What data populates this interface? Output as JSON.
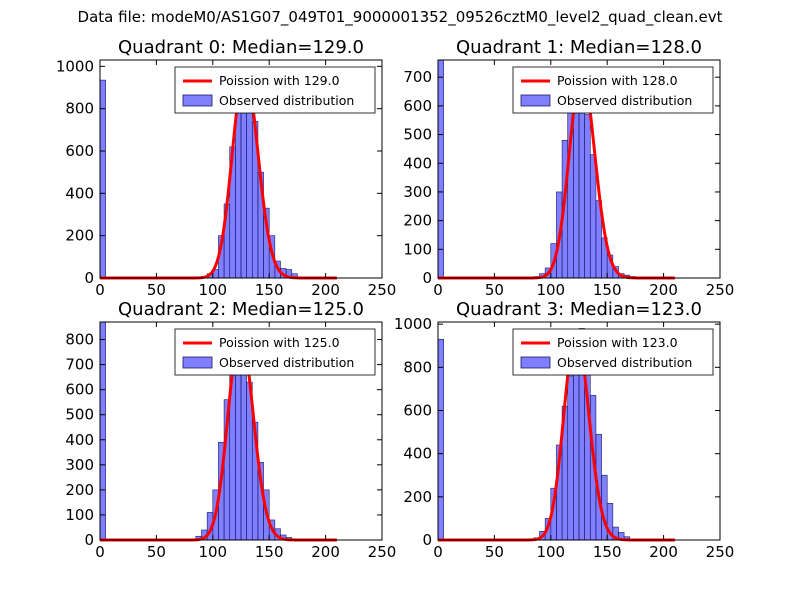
{
  "figure": {
    "suptitle": "Data file: modeM0/AS1G07_049T01_9000001352_09526cztM0_level2_quad_clean.evt"
  },
  "chart_data": [
    {
      "type": "bar",
      "title": "Quadrant 0: Median=129.0",
      "xlim": [
        0,
        250
      ],
      "ylim": [
        0,
        1030
      ],
      "xticks": [
        "0",
        "50",
        "100",
        "150",
        "200",
        "250"
      ],
      "yticks": [
        "0",
        "200",
        "400",
        "600",
        "800",
        "1000"
      ],
      "ytick_values": [
        0,
        200,
        400,
        600,
        800,
        1000
      ],
      "legend": {
        "line": "Poission with 129.0",
        "bars": "Observed distribution",
        "position": "upper-right"
      },
      "poisson_mean": 129.0,
      "poisson_amplitude": 975,
      "series": [
        {
          "name": "Observed distribution",
          "bin_width": 5,
          "bin_starts": [
            0,
            80,
            85,
            90,
            95,
            100,
            105,
            110,
            115,
            120,
            125,
            130,
            135,
            140,
            145,
            150,
            155,
            160,
            165,
            170,
            175
          ],
          "values": [
            935,
            2,
            5,
            8,
            20,
            40,
            200,
            350,
            620,
            840,
            960,
            900,
            740,
            500,
            330,
            200,
            80,
            45,
            40,
            20,
            5
          ]
        }
      ]
    },
    {
      "type": "bar",
      "title": "Quadrant 1: Median=128.0",
      "xlim": [
        0,
        250
      ],
      "ylim": [
        0,
        760
      ],
      "xticks": [
        "0",
        "50",
        "100",
        "150",
        "200",
        "250"
      ],
      "yticks": [
        "0",
        "100",
        "200",
        "300",
        "400",
        "500",
        "600",
        "700"
      ],
      "ytick_values": [
        0,
        100,
        200,
        300,
        400,
        500,
        600,
        700
      ],
      "legend": {
        "line": "Poission with 128.0",
        "bars": "Observed distribution",
        "position": "upper-right"
      },
      "poisson_mean": 128.0,
      "poisson_amplitude": 715,
      "series": [
        {
          "name": "Observed distribution",
          "bin_width": 5,
          "bin_starts": [
            0,
            85,
            90,
            95,
            100,
            105,
            110,
            115,
            120,
            125,
            130,
            135,
            140,
            145,
            150,
            155,
            160,
            165,
            170
          ],
          "values": [
            760,
            5,
            15,
            35,
            120,
            300,
            480,
            600,
            720,
            700,
            570,
            430,
            270,
            140,
            80,
            40,
            15,
            10,
            5
          ]
        }
      ]
    },
    {
      "type": "bar",
      "title": "Quadrant 2: Median=125.0",
      "xlim": [
        0,
        250
      ],
      "ylim": [
        0,
        870
      ],
      "xticks": [
        "0",
        "50",
        "100",
        "150",
        "200",
        "250"
      ],
      "yticks": [
        "0",
        "100",
        "200",
        "300",
        "400",
        "500",
        "600",
        "700",
        "800"
      ],
      "ytick_values": [
        0,
        100,
        200,
        300,
        400,
        500,
        600,
        700,
        800
      ],
      "legend": {
        "line": "Poission with 125.0",
        "bars": "Observed distribution",
        "position": "upper-right"
      },
      "poisson_mean": 125.0,
      "poisson_amplitude": 825,
      "series": [
        {
          "name": "Observed distribution",
          "bin_width": 5,
          "bin_starts": [
            0,
            80,
            85,
            90,
            95,
            100,
            105,
            110,
            115,
            120,
            125,
            130,
            135,
            140,
            145,
            150,
            155,
            160,
            165,
            170
          ],
          "values": [
            870,
            5,
            15,
            40,
            110,
            200,
            390,
            560,
            700,
            820,
            790,
            630,
            470,
            310,
            200,
            80,
            45,
            20,
            10,
            5
          ]
        }
      ]
    },
    {
      "type": "bar",
      "title": "Quadrant 3: Median=123.0",
      "xlim": [
        0,
        250
      ],
      "ylim": [
        0,
        1010
      ],
      "xticks": [
        "0",
        "50",
        "100",
        "150",
        "200",
        "250"
      ],
      "yticks": [
        "0",
        "200",
        "400",
        "600",
        "800",
        "1000"
      ],
      "ytick_values": [
        0,
        200,
        400,
        600,
        800,
        1000
      ],
      "legend": {
        "line": "Poission with 123.0",
        "bars": "Observed distribution",
        "position": "upper-right"
      },
      "poisson_mean": 123.0,
      "poisson_amplitude": 960,
      "series": [
        {
          "name": "Observed distribution",
          "bin_width": 5,
          "bin_starts": [
            0,
            85,
            90,
            95,
            100,
            105,
            110,
            115,
            120,
            125,
            130,
            135,
            140,
            145,
            150,
            155,
            160,
            165
          ],
          "values": [
            930,
            10,
            40,
            100,
            240,
            440,
            620,
            760,
            860,
            980,
            950,
            670,
            490,
            300,
            170,
            60,
            35,
            15
          ]
        }
      ]
    }
  ]
}
